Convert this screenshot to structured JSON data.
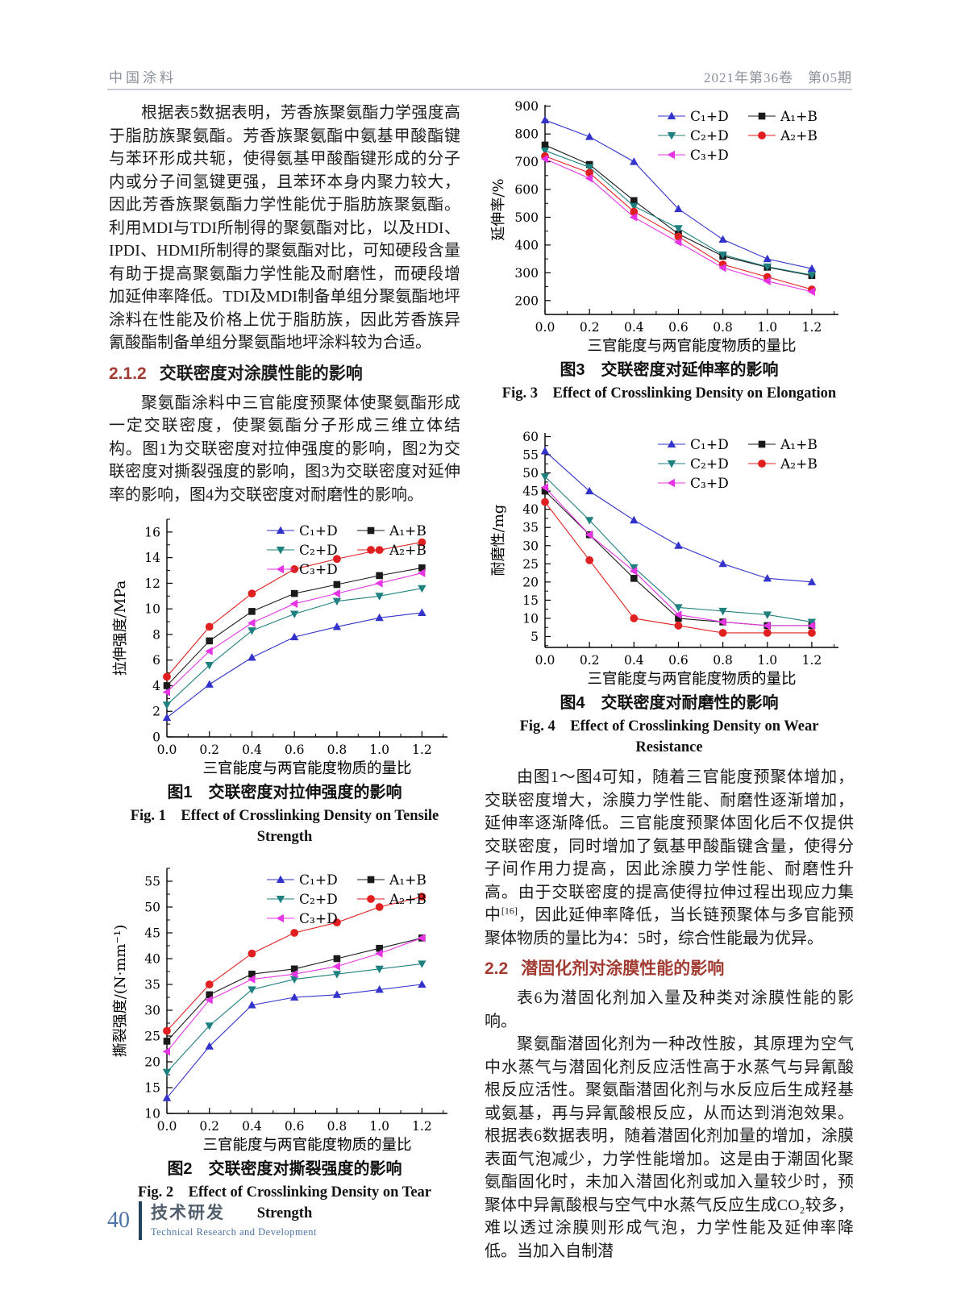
{
  "header": {
    "journal": "中国涂料",
    "issue": "2021年第36卷　第05期"
  },
  "colors": {
    "heading_red": "#a23b32",
    "header_gray": "#8a9199",
    "footer_navy": "#24415e",
    "footer_blue": "#4d74a4",
    "series_blue": "#3333cc",
    "series_black": "#1a1a1a",
    "series_teal": "#1f8080",
    "series_red": "#e02020",
    "series_magenta": "#e535e5"
  },
  "left": {
    "p1": "根据表5数据表明，芳香族聚氨酯力学强度高于脂肪族聚氨酯。芳香族聚氨酯中氨基甲酸酯键与苯环形成共轭，使得氨基甲酸酯键形成的分子内或分子间氢键更强，且苯环本身内聚力较大，因此芳香族聚氨酯力学性能优于脂肪族聚氨酯。利用MDI与TDI所制得的聚氨酯对比，以及HDI、IPDI、HDMI所制得的聚氨酯对比，可知硬段含量有助于提高聚氨酯力学性能及耐磨性，而硬段增加延伸率降低。TDI及MDI制备单组分聚氨酯地坪涂料在性能及价格上优于脂肪族，因此芳香族异氰酸酯制备单组分聚氨酯地坪涂料较为合适。",
    "sec212_num": "2.1.2",
    "sec212_title": "交联密度对涂膜性能的影响",
    "p2": "聚氨酯涂料中三官能度预聚体使聚氨酯形成一定交联密度，使聚氨酯分子形成三维立体结构。图1为交联密度对拉伸强度的影响，图2为交联密度对撕裂强度的影响，图3为交联密度对延伸率的影响，图4为交联密度对耐磨性的影响。"
  },
  "right": {
    "p1_a": "由图1～图4可知，随着三官能度预聚体增加，交联密度增大，涂膜力学性能、耐磨性逐渐增加，延伸率逐渐降低。三官能度预聚体固化后不仅提供交联密度，同时增加了氨基甲酸酯键含量，使得分子间作用力提高，因此涂膜力学性能、耐磨性升高。由于交联密度的提高使得拉伸过程出现应力集中",
    "p1_sup": "[16]",
    "p1_b": "，因此延伸率降低，当长链预聚体与多官能预聚体物质的量比为4：5时，综合性能最为优异。",
    "sec22_num": "2.2",
    "sec22_title": "潜固化剂对涂膜性能的影响",
    "p2": "表6为潜固化剂加入量及种类对涂膜性能的影响。",
    "p3": "聚氨酯潜固化剂为一种改性胺，其原理为空气中水蒸气与潜固化剂反应活性高于水蒸气与异氰酸根反应活性。聚氨酯潜固化剂与水反应后生成羟基或氨基，再与异氰酸根反应，从而达到消泡效果。根据表6数据表明，随着潜固化剂加量的增加，涂膜表面气泡减少，力学性能增加。这是由于潮固化聚氨酯固化时，未加入潜固化剂或加入量较少时，预聚体中异氰酸根与空气中水蒸气反应生成CO₂较多，难以透过涂膜则形成气泡，力学性能及延伸率降低。当加入自制潜"
  },
  "footer": {
    "page": "40",
    "zh": "技术研发",
    "en": "Technical Research and Development"
  },
  "chart_data": [
    {
      "id": "fig1",
      "type": "line",
      "x": [
        0.0,
        0.2,
        0.4,
        0.6,
        0.8,
        1.0,
        1.2
      ],
      "xtick_labels": [
        "0.0",
        "0.2",
        "0.4",
        "0.6",
        "0.8",
        "1.0",
        "1.2"
      ],
      "xlim": [
        0,
        1.32
      ],
      "xminor": 0.1,
      "ylim": [
        0,
        17
      ],
      "yticks": [
        0,
        2,
        4,
        6,
        8,
        10,
        12,
        14,
        16
      ],
      "yminor": 1,
      "xlabel": "三官能度与两官能度物质的量比",
      "ylabel": "拉伸强度/MPa",
      "caption_zh": "图1　交联密度对拉伸强度的影响",
      "caption_en": "Fig. 1　Effect of Crosslinking Density on Tensile Strength",
      "legend_position": "top-right",
      "grid": false,
      "series": [
        {
          "name": "C₁+D",
          "color": "#3333cc",
          "marker": "triangle-up",
          "values": [
            1.5,
            4.1,
            6.2,
            7.8,
            8.6,
            9.3,
            9.7
          ]
        },
        {
          "name": "A₁+B",
          "color": "#1a1a1a",
          "marker": "square",
          "values": [
            4.0,
            7.5,
            9.8,
            11.2,
            11.9,
            12.6,
            13.2
          ]
        },
        {
          "name": "C₂+D",
          "color": "#1f8080",
          "marker": "triangle-down",
          "values": [
            2.5,
            5.6,
            8.3,
            9.6,
            10.6,
            11.0,
            11.6
          ]
        },
        {
          "name": "A₂+B",
          "color": "#e02020",
          "marker": "circle",
          "values": [
            4.7,
            8.6,
            11.2,
            13.1,
            13.9,
            14.6,
            15.2
          ]
        },
        {
          "name": "C₃+D",
          "color": "#e535e5",
          "marker": "triangle-left",
          "values": [
            3.5,
            6.7,
            8.9,
            10.4,
            11.2,
            12.0,
            12.8
          ]
        }
      ]
    },
    {
      "id": "fig2",
      "type": "line",
      "x": [
        0.0,
        0.2,
        0.4,
        0.6,
        0.8,
        1.0,
        1.2
      ],
      "xtick_labels": [
        "0.0",
        "0.2",
        "0.4",
        "0.6",
        "0.8",
        "1.0",
        "1.2"
      ],
      "xlim": [
        0,
        1.32
      ],
      "xminor": 0.1,
      "ylim": [
        10,
        57.5
      ],
      "yticks": [
        10,
        15,
        20,
        25,
        30,
        35,
        40,
        45,
        50,
        55
      ],
      "yminor": 2.5,
      "xlabel": "三官能度与两官能度物质的量比",
      "ylabel": "撕裂强度/(N·mm⁻¹)",
      "caption_zh": "图2　交联密度对撕裂强度的影响",
      "caption_en": "Fig. 2　Effect of Crosslinking Density on Tear Strength",
      "legend_position": "top-right",
      "grid": false,
      "series": [
        {
          "name": "C₁+D",
          "color": "#3333cc",
          "marker": "triangle-up",
          "values": [
            13,
            23,
            31,
            32.5,
            33,
            34,
            35
          ]
        },
        {
          "name": "A₁+B",
          "color": "#1a1a1a",
          "marker": "square",
          "values": [
            24,
            33,
            37,
            38,
            40,
            42,
            44
          ]
        },
        {
          "name": "C₂+D",
          "color": "#1f8080",
          "marker": "triangle-down",
          "values": [
            18,
            27,
            34,
            36,
            37,
            38,
            39
          ]
        },
        {
          "name": "A₂+B",
          "color": "#e02020",
          "marker": "circle",
          "values": [
            26,
            35,
            41,
            45,
            47,
            50,
            52
          ]
        },
        {
          "name": "C₃+D",
          "color": "#e535e5",
          "marker": "triangle-left",
          "values": [
            22,
            32,
            36,
            37,
            38.5,
            41,
            44
          ]
        }
      ]
    },
    {
      "id": "fig3",
      "type": "line",
      "x": [
        0.0,
        0.2,
        0.4,
        0.6,
        0.8,
        1.0,
        1.2
      ],
      "xtick_labels": [
        "0.0",
        "0.2",
        "0.4",
        "0.6",
        "0.8",
        "1.0",
        "1.2"
      ],
      "xlim": [
        0,
        1.32
      ],
      "xminor": 0.1,
      "ylim": [
        150,
        905
      ],
      "yticks": [
        200,
        300,
        400,
        500,
        600,
        700,
        800,
        900
      ],
      "yminor": 50,
      "xlabel": "三官能度与两官能度物质的量比",
      "ylabel": "延伸率/%",
      "caption_zh": "图3　交联密度对延伸率的影响",
      "caption_en": "Fig. 3　Effect of Crosslinking Density on Elongation",
      "legend_position": "top-right",
      "grid": false,
      "series": [
        {
          "name": "C₁+D",
          "color": "#3333cc",
          "marker": "triangle-up",
          "values": [
            850,
            790,
            700,
            530,
            420,
            350,
            315
          ]
        },
        {
          "name": "A₁+B",
          "color": "#1a1a1a",
          "marker": "square",
          "values": [
            760,
            690,
            560,
            440,
            360,
            320,
            290
          ]
        },
        {
          "name": "C₂+D",
          "color": "#1f8080",
          "marker": "triangle-down",
          "values": [
            740,
            680,
            540,
            460,
            365,
            322,
            292
          ]
        },
        {
          "name": "A₂+B",
          "color": "#e02020",
          "marker": "circle",
          "values": [
            720,
            660,
            520,
            430,
            330,
            285,
            240
          ]
        },
        {
          "name": "C₃+D",
          "color": "#e535e5",
          "marker": "triangle-left",
          "values": [
            710,
            640,
            500,
            410,
            318,
            270,
            232
          ]
        }
      ]
    },
    {
      "id": "fig4",
      "type": "line",
      "x": [
        0.0,
        0.2,
        0.4,
        0.6,
        0.8,
        1.0,
        1.2
      ],
      "xtick_labels": [
        "0.0",
        "0.2",
        "0.4",
        "0.6",
        "0.8",
        "1.0",
        "1.2"
      ],
      "xlim": [
        0,
        1.32
      ],
      "xminor": 0.1,
      "ylim": [
        2,
        61
      ],
      "yticks": [
        5,
        10,
        15,
        20,
        25,
        30,
        35,
        40,
        45,
        50,
        55,
        60
      ],
      "yminor": 2.5,
      "xlabel": "三官能度与两官能度物质的量比",
      "ylabel": "耐磨性/mg",
      "caption_zh": "图4　交联密度对耐磨性的影响",
      "caption_en": "Fig. 4　Effect of Crosslinking Density on Wear Resistance",
      "legend_position": "top-right",
      "grid": false,
      "series": [
        {
          "name": "C₁+D",
          "color": "#3333cc",
          "marker": "triangle-up",
          "values": [
            56,
            45,
            37,
            30,
            25,
            21,
            20
          ]
        },
        {
          "name": "A₁+B",
          "color": "#1a1a1a",
          "marker": "square",
          "values": [
            45,
            33,
            21,
            10,
            9,
            8,
            8
          ]
        },
        {
          "name": "C₂+D",
          "color": "#1f8080",
          "marker": "triangle-down",
          "values": [
            49,
            37,
            24,
            13,
            12,
            11,
            9
          ]
        },
        {
          "name": "A₂+B",
          "color": "#e02020",
          "marker": "circle",
          "values": [
            42,
            26,
            10,
            8,
            6,
            6,
            6
          ]
        },
        {
          "name": "C₃+D",
          "color": "#e535e5",
          "marker": "triangle-left",
          "values": [
            46,
            33,
            23,
            11,
            9,
            8,
            8
          ]
        }
      ]
    }
  ]
}
